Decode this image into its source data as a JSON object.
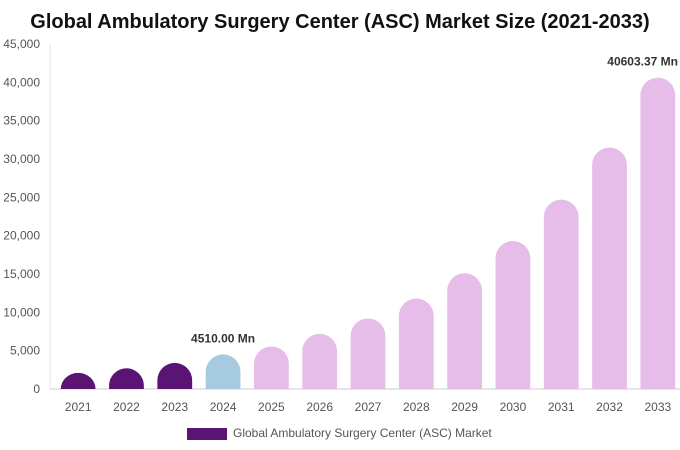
{
  "chart_data": {
    "type": "bar",
    "title": "Global Ambulatory Surgery Center (ASC) Market Size (2021-2033)",
    "xlabel": "",
    "ylabel": "",
    "categories": [
      "2021",
      "2022",
      "2023",
      "2024",
      "2025",
      "2026",
      "2027",
      "2028",
      "2029",
      "2030",
      "2031",
      "2032",
      "2033"
    ],
    "series": [
      {
        "name": "Global Ambulatory Surgery Center (ASC) Market",
        "values": [
          2100,
          2700,
          3400,
          4510.0,
          5550,
          7200,
          9200,
          11800,
          15100,
          19300,
          24700,
          31500,
          40603.37
        ]
      }
    ],
    "bar_phases": [
      "historical",
      "historical",
      "historical",
      "base",
      "forecast",
      "forecast",
      "forecast",
      "forecast",
      "forecast",
      "forecast",
      "forecast",
      "forecast",
      "forecast"
    ],
    "data_labels": [
      {
        "index": 3,
        "text": "4510.00 Mn"
      },
      {
        "index": 12,
        "text": "40603.37 Mn"
      }
    ],
    "y_ticks": [
      "0",
      "5,000",
      "10,000",
      "15,000",
      "20,000",
      "25,000",
      "30,000",
      "35,000",
      "40,000",
      "45,000"
    ],
    "ylim": [
      0,
      45000
    ],
    "grid": false,
    "legend_position": "bottom",
    "colors": {
      "historical": "#5a1574",
      "base": "#a6cadf",
      "forecast": "#e6bde8",
      "legend_swatch": "#5a1574"
    }
  }
}
